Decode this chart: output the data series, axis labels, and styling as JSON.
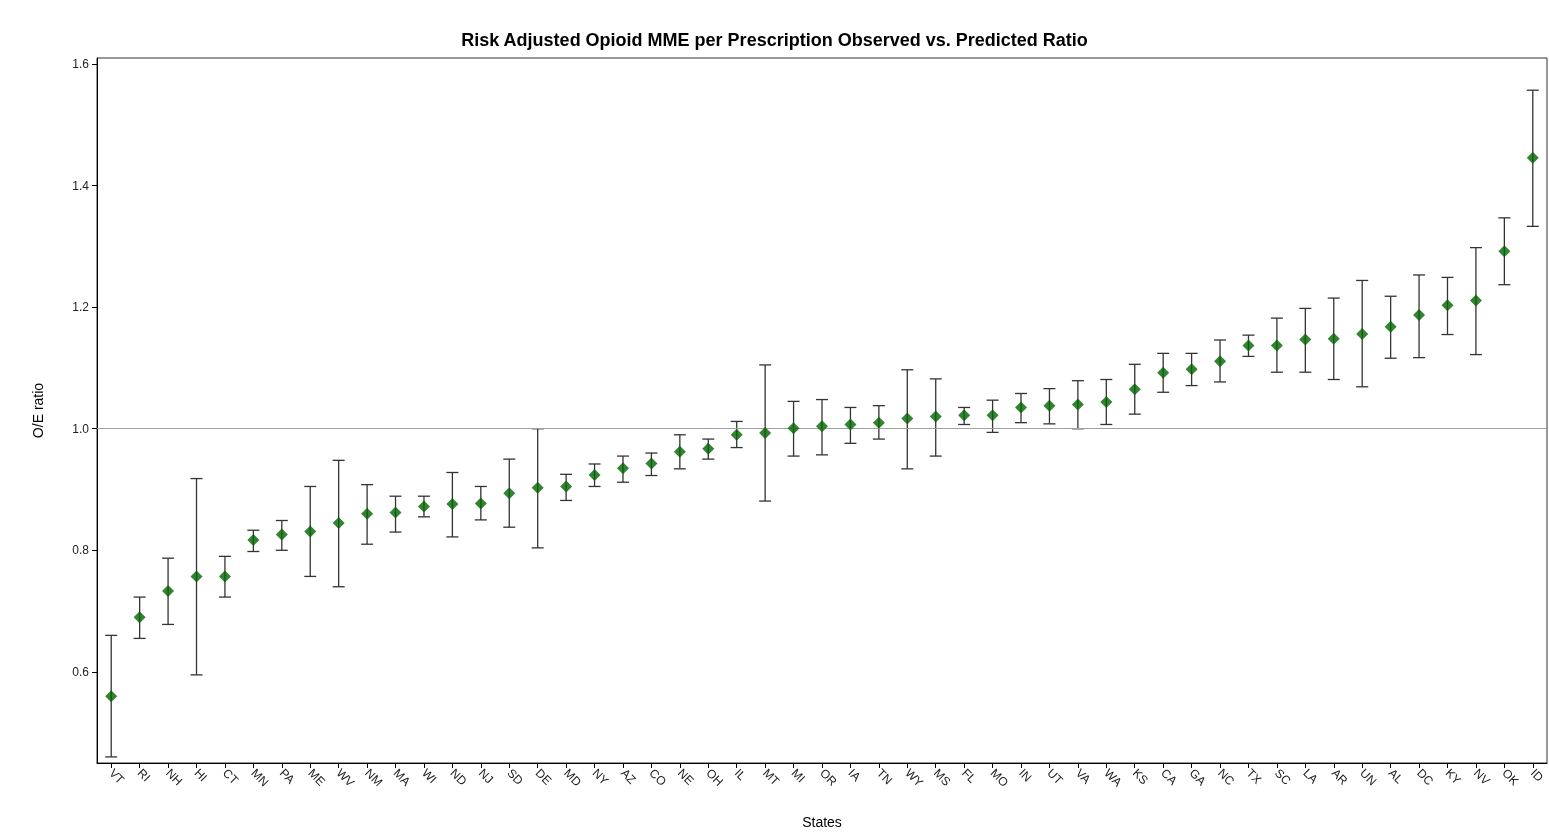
{
  "chart_data": {
    "type": "scatter",
    "title": "Risk Adjusted Opioid MME per Prescription Observed vs. Predicted Ratio",
    "xlabel": "States",
    "ylabel": "O/E ratio",
    "categories": [
      "VT",
      "RI",
      "NH",
      "HI",
      "CT",
      "MN",
      "PA",
      "ME",
      "WV",
      "NM",
      "MA",
      "WI",
      "ND",
      "NJ",
      "SD",
      "DE",
      "MD",
      "NY",
      "AZ",
      "CO",
      "NE",
      "OH",
      "IL",
      "MT",
      "MI",
      "OR",
      "IA",
      "TN",
      "WY",
      "MS",
      "FL",
      "MO",
      "IN",
      "UT",
      "VA",
      "WA",
      "KS",
      "CA",
      "GA",
      "NC",
      "TX",
      "SC",
      "LA",
      "AR",
      "UN",
      "AL",
      "DC",
      "KY",
      "NV",
      "OK",
      "ID"
    ],
    "series": [
      {
        "color": "#006400",
        "values": [
          0.56,
          0.69,
          0.733,
          0.757,
          0.757,
          0.817,
          0.826,
          0.831,
          0.845,
          0.86,
          0.862,
          0.872,
          0.876,
          0.877,
          0.894,
          0.903,
          0.905,
          0.924,
          0.935,
          0.943,
          0.962,
          0.967,
          0.99,
          0.993,
          1.001,
          1.004,
          1.007,
          1.01,
          1.017,
          1.02,
          1.022,
          1.022,
          1.035,
          1.038,
          1.04,
          1.044,
          1.065,
          1.092,
          1.098,
          1.111,
          1.137,
          1.137,
          1.147,
          1.148,
          1.156,
          1.168,
          1.187,
          1.203,
          1.211,
          1.292,
          1.446
        ],
        "errors": [
          [
            0.46,
            0.66
          ],
          [
            0.655,
            0.723
          ],
          [
            0.678,
            0.787
          ],
          [
            0.595,
            0.918
          ],
          [
            0.723,
            0.79
          ],
          [
            0.798,
            0.833
          ],
          [
            0.8,
            0.849
          ],
          [
            0.757,
            0.905
          ],
          [
            0.74,
            0.948
          ],
          [
            0.81,
            0.908
          ],
          [
            0.83,
            0.889
          ],
          [
            0.855,
            0.889
          ],
          [
            0.822,
            0.928
          ],
          [
            0.85,
            0.905
          ],
          [
            0.838,
            0.95
          ],
          [
            0.804,
            1.0
          ],
          [
            0.882,
            0.925
          ],
          [
            0.905,
            0.942
          ],
          [
            0.912,
            0.955
          ],
          [
            0.923,
            0.96
          ],
          [
            0.934,
            0.99
          ],
          [
            0.95,
            0.983
          ],
          [
            0.969,
            1.012
          ],
          [
            0.881,
            1.105
          ],
          [
            0.955,
            1.045
          ],
          [
            0.957,
            1.048
          ],
          [
            0.976,
            1.035
          ],
          [
            0.983,
            1.038
          ],
          [
            0.934,
            1.097
          ],
          [
            0.955,
            1.082
          ],
          [
            1.007,
            1.035
          ],
          [
            0.994,
            1.047
          ],
          [
            1.01,
            1.058
          ],
          [
            1.008,
            1.066
          ],
          [
            1.0,
            1.079
          ],
          [
            1.007,
            1.081
          ],
          [
            1.024,
            1.106
          ],
          [
            1.06,
            1.124
          ],
          [
            1.071,
            1.124
          ],
          [
            1.077,
            1.146
          ],
          [
            1.119,
            1.154
          ],
          [
            1.093,
            1.182
          ],
          [
            1.093,
            1.198
          ],
          [
            1.081,
            1.215
          ],
          [
            1.069,
            1.244
          ],
          [
            1.116,
            1.218
          ],
          [
            1.117,
            1.253
          ],
          [
            1.155,
            1.249
          ],
          [
            1.122,
            1.298
          ],
          [
            1.237,
            1.347
          ],
          [
            1.333,
            1.557
          ]
        ]
      }
    ],
    "ylim": [
      0.45,
      1.61
    ],
    "yticks": [
      0.6,
      0.8,
      {
        "value": 1,
        "label": "1.0"
      },
      1.2,
      1.4,
      1.6
    ],
    "ref_lines": [
      {
        "axis": "y",
        "value": 1.0,
        "color": "#a0a0a0"
      }
    ],
    "marker": "diamond",
    "grid": false
  }
}
